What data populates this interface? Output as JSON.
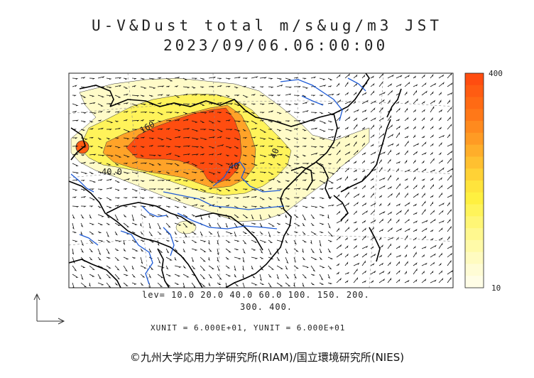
{
  "title": {
    "line1": "U-V&Dust total m/s&ug/m3 JST",
    "line2": "2023/09/06.06:00:00"
  },
  "colorbar": {
    "max_label": "400",
    "min_label": "10",
    "colors": [
      "#ff4d10",
      "#ff5c12",
      "#ff6a14",
      "#ff7818",
      "#ff8a1e",
      "#ff9b24",
      "#ffae2a",
      "#ffc030",
      "#ffd236",
      "#ffe43c",
      "#fff040",
      "#fff45a",
      "#fff675",
      "#fff88f",
      "#fffaa8",
      "#fffbc0",
      "#fffcd5",
      "#fffde6"
    ]
  },
  "contour_labels": [
    "160",
    "40",
    "40.0",
    "40"
  ],
  "levels": {
    "line1": "lev= 10.0 20.0 40.0 60.0 100. 150. 200.",
    "line2": "300. 400."
  },
  "units": {
    "text": "XUNIT = 6.000E+01, YUNIT = 6.000E+01"
  },
  "credit": {
    "text": "©九州大学応用力学研究所(RIAM)/国立環境研究所(NIES)"
  },
  "colors": {
    "coast": "#000000",
    "river": "#1e5bd6",
    "dust_high": "#ff4d10",
    "dust_low": "#fffbc0"
  }
}
